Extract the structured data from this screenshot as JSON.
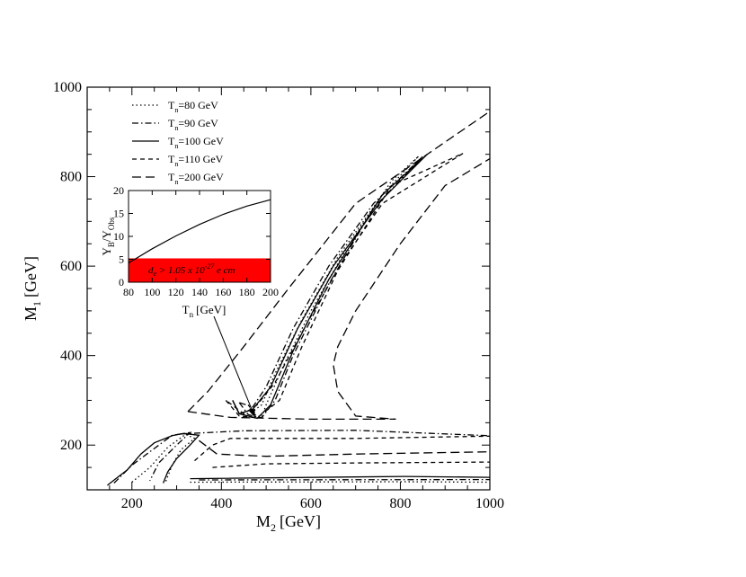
{
  "chart_data": [
    {
      "type": "line",
      "xlabel": "M",
      "xlabel_sub": "2",
      "xlabel_unit": "[GeV]",
      "ylabel": "M",
      "ylabel_sub": "1",
      "ylabel_unit": "[GeV]",
      "xlim": [
        100,
        1000
      ],
      "ylim": [
        100,
        1000
      ],
      "xticks": [
        200,
        400,
        600,
        800,
        1000
      ],
      "yticks": [
        200,
        400,
        600,
        800,
        1000
      ],
      "grid": false,
      "legend_position": "top-left",
      "series": [
        {
          "name": "T_n=80 GeV",
          "label_main": "T",
          "label_sub": "n",
          "label_rest": "=80 GeV",
          "dash": "1.5,3",
          "segments": [
            [
              [
                200,
                117
              ],
              [
                240,
                150
              ],
              [
                280,
                195
              ],
              [
                320,
                224
              ],
              [
                340,
                215
              ],
              [
                310,
                190
              ],
              [
                290,
                155
              ],
              [
                275,
                117
              ]
            ],
            [
              [
                460,
                290
              ],
              [
                470,
                270
              ],
              [
                490,
                262
              ],
              [
                500,
                290
              ],
              [
                540,
                380
              ],
              [
                600,
                500
              ],
              [
                680,
                640
              ],
              [
                780,
                790
              ],
              [
                840,
                845
              ]
            ],
            [
              [
                840,
                845
              ],
              [
                760,
                760
              ],
              [
                660,
                620
              ],
              [
                580,
                480
              ],
              [
                520,
                360
              ],
              [
                490,
                290
              ],
              [
                470,
                275
              ],
              [
                460,
                290
              ]
            ],
            [
              [
                330,
                117
              ],
              [
                800,
                118
              ],
              [
                1000,
                117
              ]
            ]
          ]
        },
        {
          "name": "T_n=90 GeV",
          "label_main": "T",
          "label_sub": "n",
          "label_rest": "=90 GeV",
          "dash": "7,3,1.5,3",
          "segments": [
            [
              [
                160,
                115
              ],
              [
                200,
                155
              ],
              [
                240,
                185
              ],
              [
                290,
                222
              ],
              [
                330,
                228
              ],
              [
                300,
                200
              ],
              [
                260,
                160
              ],
              [
                240,
                120
              ]
            ],
            [
              [
                440,
                295
              ],
              [
                460,
                268
              ],
              [
                490,
                261
              ],
              [
                520,
                300
              ],
              [
                560,
                400
              ],
              [
                640,
                560
              ],
              [
                740,
                730
              ],
              [
                850,
                845
              ]
            ],
            [
              [
                850,
                845
              ],
              [
                740,
                740
              ],
              [
                640,
                600
              ],
              [
                560,
                460
              ],
              [
                500,
                330
              ],
              [
                470,
                285
              ],
              [
                440,
                295
              ]
            ],
            [
              [
                350,
                122
              ],
              [
                1000,
                123
              ]
            ],
            [
              [
                310,
                225
              ],
              [
                450,
                232
              ],
              [
                700,
                233
              ],
              [
                1000,
                221
              ]
            ]
          ]
        },
        {
          "name": "T_n=100 GeV",
          "label_main": "T",
          "label_sub": "n",
          "label_rest": "=100 GeV",
          "dash": "",
          "segments": [
            [
              [
                145,
                110
              ],
              [
                190,
                145
              ],
              [
                220,
                180
              ],
              [
                250,
                205
              ],
              [
                290,
                221
              ],
              [
                315,
                226
              ],
              [
                350,
                222
              ],
              [
                330,
                200
              ],
              [
                300,
                170
              ],
              [
                280,
                140
              ],
              [
                270,
                115
              ]
            ],
            [
              [
                425,
                300
              ],
              [
                440,
                270
              ],
              [
                480,
                260
              ],
              [
                510,
                290
              ],
              [
                560,
                410
              ],
              [
                640,
                570
              ],
              [
                760,
                760
              ],
              [
                860,
                850
              ]
            ],
            [
              [
                860,
                850
              ],
              [
                760,
                750
              ],
              [
                650,
                600
              ],
              [
                570,
                460
              ],
              [
                510,
                330
              ],
              [
                470,
                280
              ],
              [
                440,
                270
              ],
              [
                425,
                300
              ]
            ],
            [
              [
                330,
                125
              ],
              [
                810,
                130
              ],
              [
                1000,
                128
              ]
            ]
          ]
        },
        {
          "name": "T_n=110 GeV",
          "label_main": "T",
          "label_sub": "n",
          "label_rest": "=110 GeV",
          "dash": "5,4",
          "segments": [
            [
              [
                410,
                300
              ],
              [
                440,
                265
              ],
              [
                480,
                261
              ],
              [
                530,
                300
              ],
              [
                580,
                420
              ],
              [
                660,
                590
              ],
              [
                780,
                780
              ],
              [
                940,
                852
              ]
            ],
            [
              [
                940,
                852
              ],
              [
                760,
                740
              ],
              [
                670,
                610
              ],
              [
                590,
                470
              ],
              [
                520,
                340
              ],
              [
                480,
                290
              ],
              [
                450,
                270
              ],
              [
                410,
                300
              ]
            ],
            [
              [
                340,
                165
              ],
              [
                380,
                200
              ],
              [
                420,
                215
              ],
              [
                500,
                215
              ],
              [
                700,
                215
              ],
              [
                1000,
                220
              ]
            ],
            [
              [
                380,
                150
              ],
              [
                500,
                158
              ],
              [
                700,
                160
              ],
              [
                1000,
                162
              ]
            ]
          ]
        },
        {
          "name": "T_n=200 GeV",
          "label_main": "T",
          "label_sub": "n",
          "label_rest": "=200 GeV",
          "dash": "10,5",
          "segments": [
            [
              [
                325,
                275
              ],
              [
                370,
                320
              ],
              [
                450,
                420
              ],
              [
                550,
                550
              ],
              [
                700,
                740
              ],
              [
                1000,
                946
              ]
            ],
            [
              [
                325,
                275
              ],
              [
                420,
                262
              ],
              [
                600,
                258
              ],
              [
                790,
                258
              ],
              [
                700,
                265
              ],
              [
                660,
                320
              ],
              [
                650,
                380
              ],
              [
                660,
                420
              ],
              [
                700,
                500
              ],
              [
                800,
                650
              ],
              [
                900,
                780
              ],
              [
                1000,
                840
              ]
            ],
            [
              [
                350,
                210
              ],
              [
                390,
                180
              ],
              [
                500,
                175
              ],
              [
                700,
                180
              ],
              [
                1000,
                185
              ]
            ]
          ]
        }
      ]
    },
    {
      "type": "line",
      "xlabel": "T",
      "xlabel_sub": "n",
      "xlabel_unit": "[GeV]",
      "ylabel_parts": [
        "Y",
        "B",
        "/Y",
        "Obs"
      ],
      "xlim": [
        80,
        200
      ],
      "ylim": [
        0,
        20
      ],
      "xticks": [
        80,
        100,
        120,
        140,
        160,
        180,
        200
      ],
      "yticks": [
        0,
        5,
        10,
        15,
        20
      ],
      "series": [
        {
          "x": [
            80,
            100,
            120,
            140,
            160,
            180,
            200
          ],
          "y": [
            4.2,
            7.3,
            10.1,
            12.6,
            14.8,
            16.6,
            18.0
          ]
        }
      ],
      "excluded_band": {
        "ymin": 0,
        "ymax": 5.2,
        "color": "#ff0000",
        "label_parts": [
          "d",
          "e",
          " > 1.05 x 10",
          "-27",
          " e cm"
        ]
      }
    }
  ]
}
